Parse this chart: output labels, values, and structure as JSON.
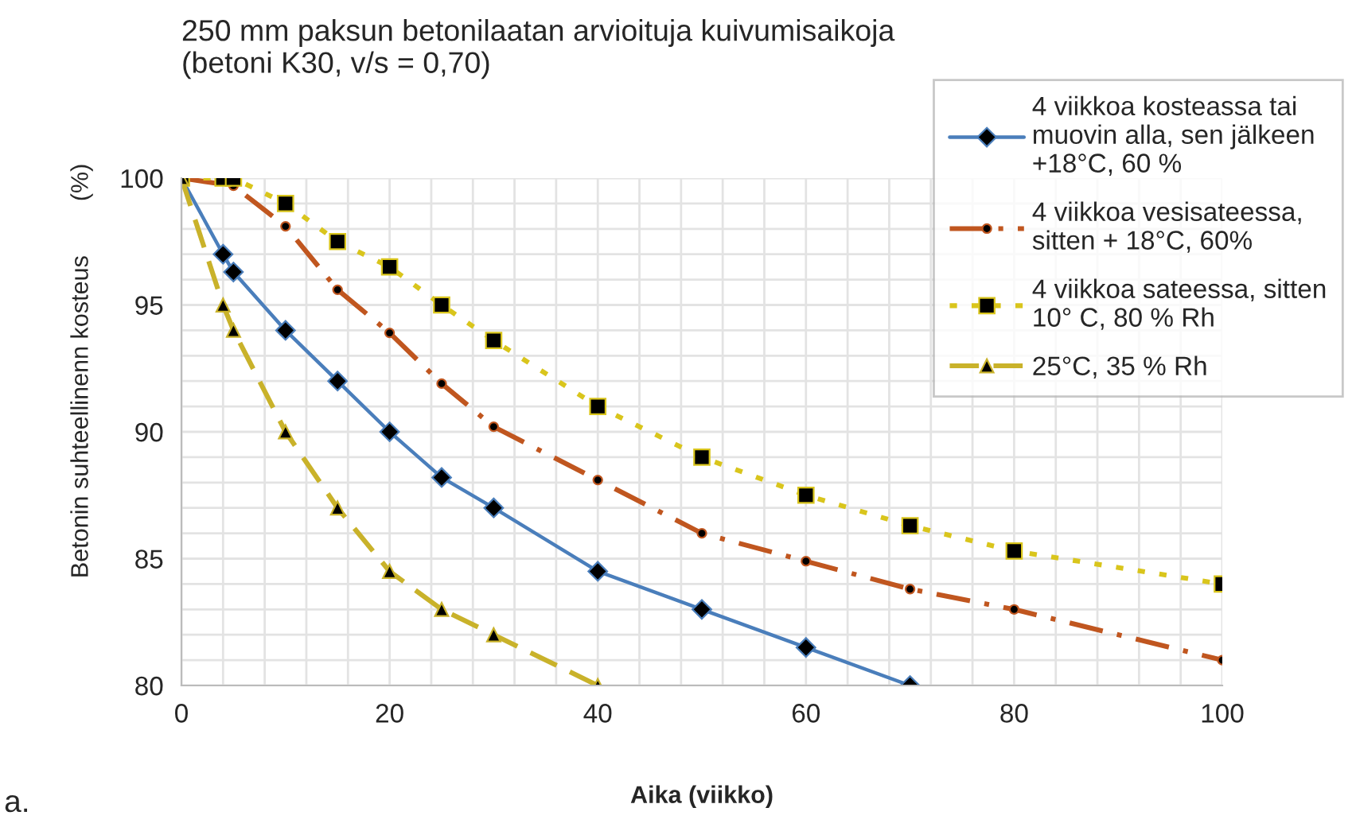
{
  "chart_data": {
    "type": "line",
    "title": "250 mm paksun betonilaatan arvioituja kuivumisaikoja\n(betoni K30, v/s = 0,70)",
    "xlabel": "Aika (viikko)",
    "ylabel": "Betonin suhteellinenn kosteus        (%)",
    "annotations": [
      "a."
    ],
    "xlim": [
      0,
      100
    ],
    "ylim": [
      80,
      100
    ],
    "xticks": [
      0,
      {
        "value": 4,
        "label": null
      },
      {
        "value": 8,
        "label": null
      },
      {
        "value": 12,
        "label": null
      },
      {
        "value": 16,
        "label": null
      },
      20,
      {
        "value": 24,
        "label": null
      },
      {
        "value": 28,
        "label": null
      },
      {
        "value": 32,
        "label": null
      },
      {
        "value": 36,
        "label": null
      },
      40,
      {
        "value": 44,
        "label": null
      },
      {
        "value": 48,
        "label": null
      },
      {
        "value": 52,
        "label": null
      },
      {
        "value": 56,
        "label": null
      },
      60,
      {
        "value": 64,
        "label": null
      },
      {
        "value": 68,
        "label": null
      },
      {
        "value": 72,
        "label": null
      },
      {
        "value": 76,
        "label": null
      },
      80,
      {
        "value": 84,
        "label": null
      },
      {
        "value": 88,
        "label": null
      },
      {
        "value": 92,
        "label": null
      },
      {
        "value": 96,
        "label": null
      },
      100
    ],
    "yticks": [
      80,
      {
        "value": 81,
        "label": null
      },
      {
        "value": 82,
        "label": null
      },
      {
        "value": 83,
        "label": null
      },
      {
        "value": 84,
        "label": null
      },
      85,
      {
        "value": 86,
        "label": null
      },
      {
        "value": 87,
        "label": null
      },
      {
        "value": 88,
        "label": null
      },
      {
        "value": 89,
        "label": null
      },
      90,
      {
        "value": 91,
        "label": null
      },
      {
        "value": 92,
        "label": null
      },
      {
        "value": 93,
        "label": null
      },
      {
        "value": 94,
        "label": null
      },
      95,
      {
        "value": 96,
        "label": null
      },
      {
        "value": 97,
        "label": null
      },
      {
        "value": 98,
        "label": null
      },
      {
        "value": 99,
        "label": null
      },
      100
    ],
    "grid": true,
    "legend": "top right",
    "series": [
      {
        "name": "4 viikkoa kosteassa tai\nmuovin alla, sen jälkeen\n+18°C, 60 %",
        "color": "#4a7ebb",
        "marker": "diamond",
        "line_style": "solid",
        "x": [
          0,
          4,
          5,
          10,
          15,
          20,
          25,
          30,
          40,
          50,
          60,
          70
        ],
        "values": [
          100,
          97,
          96.3,
          94,
          92,
          90,
          88.2,
          87,
          84.5,
          83,
          81.5,
          80
        ]
      },
      {
        "name": "4 viikkoa vesisateessa,\nsitten + 18°C, 60%",
        "color": "#c0561f",
        "marker": "circle",
        "line_style": "dashdot",
        "x": [
          0,
          5,
          10,
          15,
          20,
          25,
          30,
          40,
          50,
          60,
          70,
          80,
          100
        ],
        "values": [
          100,
          99.7,
          98.1,
          95.6,
          93.9,
          91.9,
          90.2,
          88.1,
          86,
          84.9,
          83.8,
          83,
          81
        ]
      },
      {
        "name": "4 viikkoa sateessa, sitten\n10° C, 80 % Rh",
        "color": "#d9c51c",
        "marker": "square",
        "line_style": "dotted",
        "x": [
          0,
          4,
          5,
          10,
          15,
          20,
          25,
          30,
          40,
          50,
          60,
          70,
          80,
          100
        ],
        "values": [
          100,
          100,
          100,
          99,
          97.5,
          96.5,
          95,
          93.6,
          91,
          89,
          87.5,
          86.3,
          85.3,
          84
        ]
      },
      {
        "name": "25°C, 35 % Rh",
        "color": "#c9b22a",
        "marker": "triangle",
        "line_style": "dashed",
        "x": [
          0,
          4,
          5,
          10,
          15,
          20,
          25,
          30,
          40
        ],
        "values": [
          100,
          95,
          94,
          90,
          87,
          84.5,
          83,
          82,
          80
        ]
      }
    ]
  }
}
